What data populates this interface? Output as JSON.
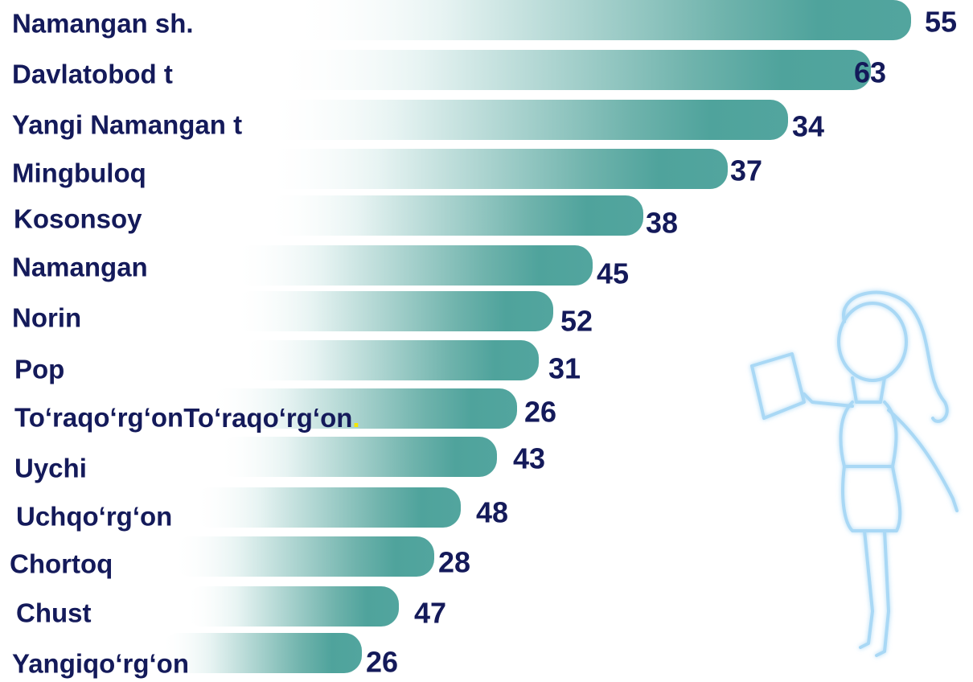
{
  "items": [
    {
      "label": "Namangan sh.",
      "value": "55"
    },
    {
      "label": "Davlatobod t",
      "value": "63"
    },
    {
      "label": "Yangi Namangan t",
      "value": "34"
    },
    {
      "label": "Mingbuloq",
      "value": "37"
    },
    {
      "label": "Kosonsoy",
      "value": "38"
    },
    {
      "label": "Namangan",
      "value": "45"
    },
    {
      "label": "Norin",
      "value": "52"
    },
    {
      "label": "Pop",
      "value": "31"
    },
    {
      "label": "To‘raqo‘rg‘on",
      "value": "26",
      "accent": "."
    },
    {
      "label": "Uychi",
      "value": "43"
    },
    {
      "label": "Uchqo‘rg‘on",
      "value": "48"
    },
    {
      "label": "Chortoq",
      "value": "28"
    },
    {
      "label": "Chust",
      "value": "47"
    },
    {
      "label": "Yangiqo‘rg‘on",
      "value": "26"
    }
  ]
}
